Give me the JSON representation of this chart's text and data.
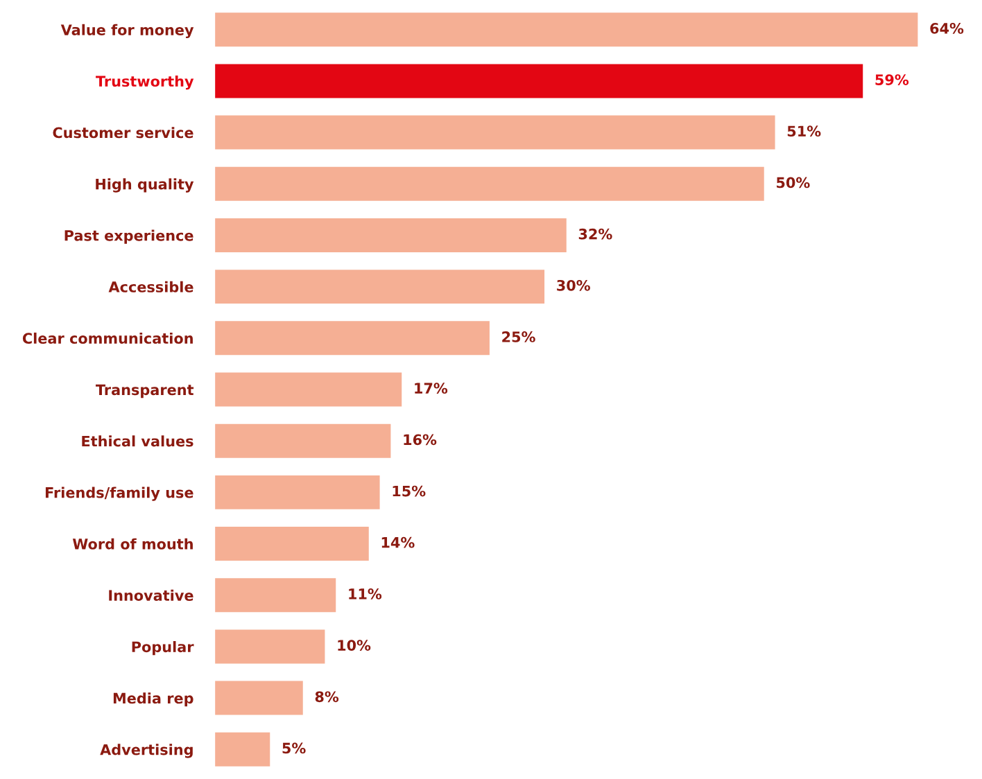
{
  "chart_data": {
    "type": "bar",
    "orientation": "horizontal",
    "categories": [
      "Value for money",
      "Trustworthy",
      "Customer service",
      "High quality",
      "Past experience",
      "Accessible",
      "Clear communication",
      "Transparent",
      "Ethical values",
      "Friends/family use",
      "Word of mouth",
      "Innovative",
      "Popular",
      "Media rep",
      "Advertising"
    ],
    "values": [
      64,
      59,
      51,
      50,
      32,
      30,
      25,
      17,
      16,
      15,
      14,
      11,
      10,
      8,
      5
    ],
    "value_labels": [
      "64%",
      "59%",
      "51%",
      "50%",
      "32%",
      "30%",
      "25%",
      "17%",
      "16%",
      "15%",
      "14%",
      "11%",
      "10%",
      "8%",
      "5%"
    ],
    "colors": [
      "#f5af94",
      "#e30613",
      "#f5af94",
      "#f5af94",
      "#f5af94",
      "#f5af94",
      "#f5af94",
      "#f5af94",
      "#f5af94",
      "#f5af94",
      "#f5af94",
      "#f5af94",
      "#f5af94",
      "#f5af94",
      "#f5af94"
    ],
    "grid": false,
    "legend": false
  }
}
